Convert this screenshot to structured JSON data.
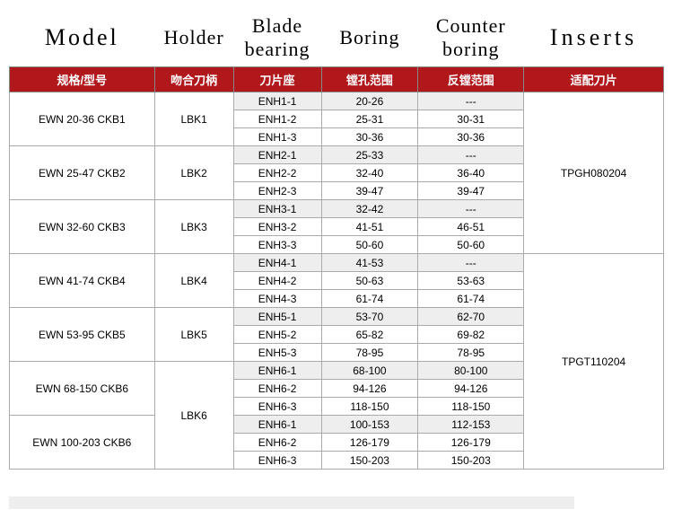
{
  "columns": {
    "model": {
      "en": "Model",
      "cn": "规格/型号"
    },
    "holder": {
      "en": "Holder",
      "cn": "吻合刀柄"
    },
    "blade": {
      "en": "Blade bearing",
      "cn": "刀片座"
    },
    "boring": {
      "en": "Boring",
      "cn": "镗孔范围"
    },
    "counter": {
      "en": "Counter boring",
      "cn": "反镗范围"
    },
    "inserts": {
      "en": "Inserts",
      "cn": "适配刀片"
    }
  },
  "colors": {
    "header_bg": "#b1181c",
    "header_fg": "#ffffff",
    "shade_bg": "#eeeeee",
    "border": "#aaaaaa"
  },
  "inserts": [
    {
      "label": "TPGH080204",
      "span": 9
    },
    {
      "label": "TPGT110204",
      "span": 12
    }
  ],
  "groups": [
    {
      "model": "EWN  20-36 CKB1",
      "holder": "LBK1",
      "holder_span": 3,
      "rows": [
        {
          "blade": "ENH1-1",
          "boring": "20-26",
          "counter": "---",
          "shaded": true
        },
        {
          "blade": "ENH1-2",
          "boring": "25-31",
          "counter": "30-31",
          "shaded": false
        },
        {
          "blade": "ENH1-3",
          "boring": "30-36",
          "counter": "30-36",
          "shaded": false
        }
      ]
    },
    {
      "model": "EWN  25-47 CKB2",
      "holder": "LBK2",
      "holder_span": 3,
      "rows": [
        {
          "blade": "ENH2-1",
          "boring": "25-33",
          "counter": "---",
          "shaded": true
        },
        {
          "blade": "ENH2-2",
          "boring": "32-40",
          "counter": "36-40",
          "shaded": false
        },
        {
          "blade": "ENH2-3",
          "boring": "39-47",
          "counter": "39-47",
          "shaded": false
        }
      ]
    },
    {
      "model": "EWN  32-60 CKB3",
      "holder": "LBK3",
      "holder_span": 3,
      "rows": [
        {
          "blade": "ENH3-1",
          "boring": "32-42",
          "counter": "---",
          "shaded": true
        },
        {
          "blade": "ENH3-2",
          "boring": "41-51",
          "counter": "46-51",
          "shaded": false
        },
        {
          "blade": "ENH3-3",
          "boring": "50-60",
          "counter": "50-60",
          "shaded": false
        }
      ]
    },
    {
      "model": "EWN  41-74 CKB4",
      "holder": "LBK4",
      "holder_span": 3,
      "rows": [
        {
          "blade": "ENH4-1",
          "boring": "41-53",
          "counter": "---",
          "shaded": true
        },
        {
          "blade": "ENH4-2",
          "boring": "50-63",
          "counter": "53-63",
          "shaded": false
        },
        {
          "blade": "ENH4-3",
          "boring": "61-74",
          "counter": "61-74",
          "shaded": false
        }
      ]
    },
    {
      "model": "EWN  53-95 CKB5",
      "holder": "LBK5",
      "holder_span": 3,
      "rows": [
        {
          "blade": "ENH5-1",
          "boring": "53-70",
          "counter": "62-70",
          "shaded": true
        },
        {
          "blade": "ENH5-2",
          "boring": "65-82",
          "counter": "69-82",
          "shaded": false
        },
        {
          "blade": "ENH5-3",
          "boring": "78-95",
          "counter": "78-95",
          "shaded": false
        }
      ]
    },
    {
      "model": "EWN  68-150 CKB6",
      "holder": "LBK6",
      "holder_span": 6,
      "rows": [
        {
          "blade": "ENH6-1",
          "boring": "68-100",
          "counter": "80-100",
          "shaded": true
        },
        {
          "blade": "ENH6-2",
          "boring": "94-126",
          "counter": "94-126",
          "shaded": false
        },
        {
          "blade": "ENH6-3",
          "boring": "118-150",
          "counter": "118-150",
          "shaded": false
        }
      ]
    },
    {
      "model": "EWN  100-203 CKB6",
      "holder": null,
      "holder_span": 0,
      "rows": [
        {
          "blade": "ENH6-1",
          "boring": "100-153",
          "counter": "112-153",
          "shaded": true
        },
        {
          "blade": "ENH6-2",
          "boring": "126-179",
          "counter": "126-179",
          "shaded": false
        },
        {
          "blade": "ENH6-3",
          "boring": "150-203",
          "counter": "150-203",
          "shaded": false
        }
      ]
    }
  ]
}
